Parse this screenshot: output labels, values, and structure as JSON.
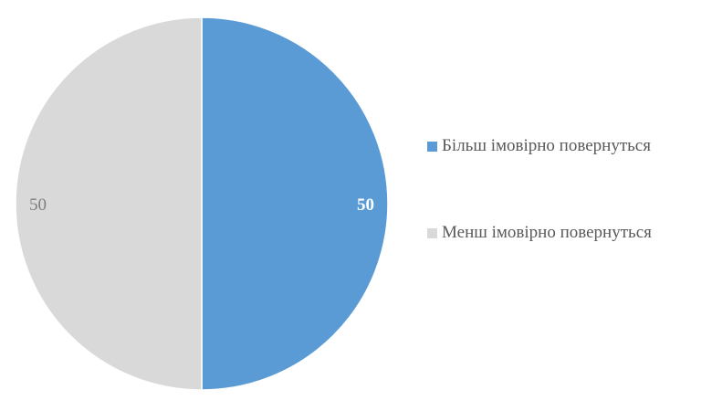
{
  "chart_data": {
    "type": "pie",
    "title": "",
    "legend_position": "right",
    "slices": [
      {
        "label": "Більш імовірно повернуться",
        "value": 50,
        "color": "#5b9bd5",
        "label_color": "#ffffff"
      },
      {
        "label": "Менш імовірно повернуться",
        "value": 50,
        "color": "#d9d9d9",
        "label_color": "#7f7f7f"
      }
    ]
  }
}
